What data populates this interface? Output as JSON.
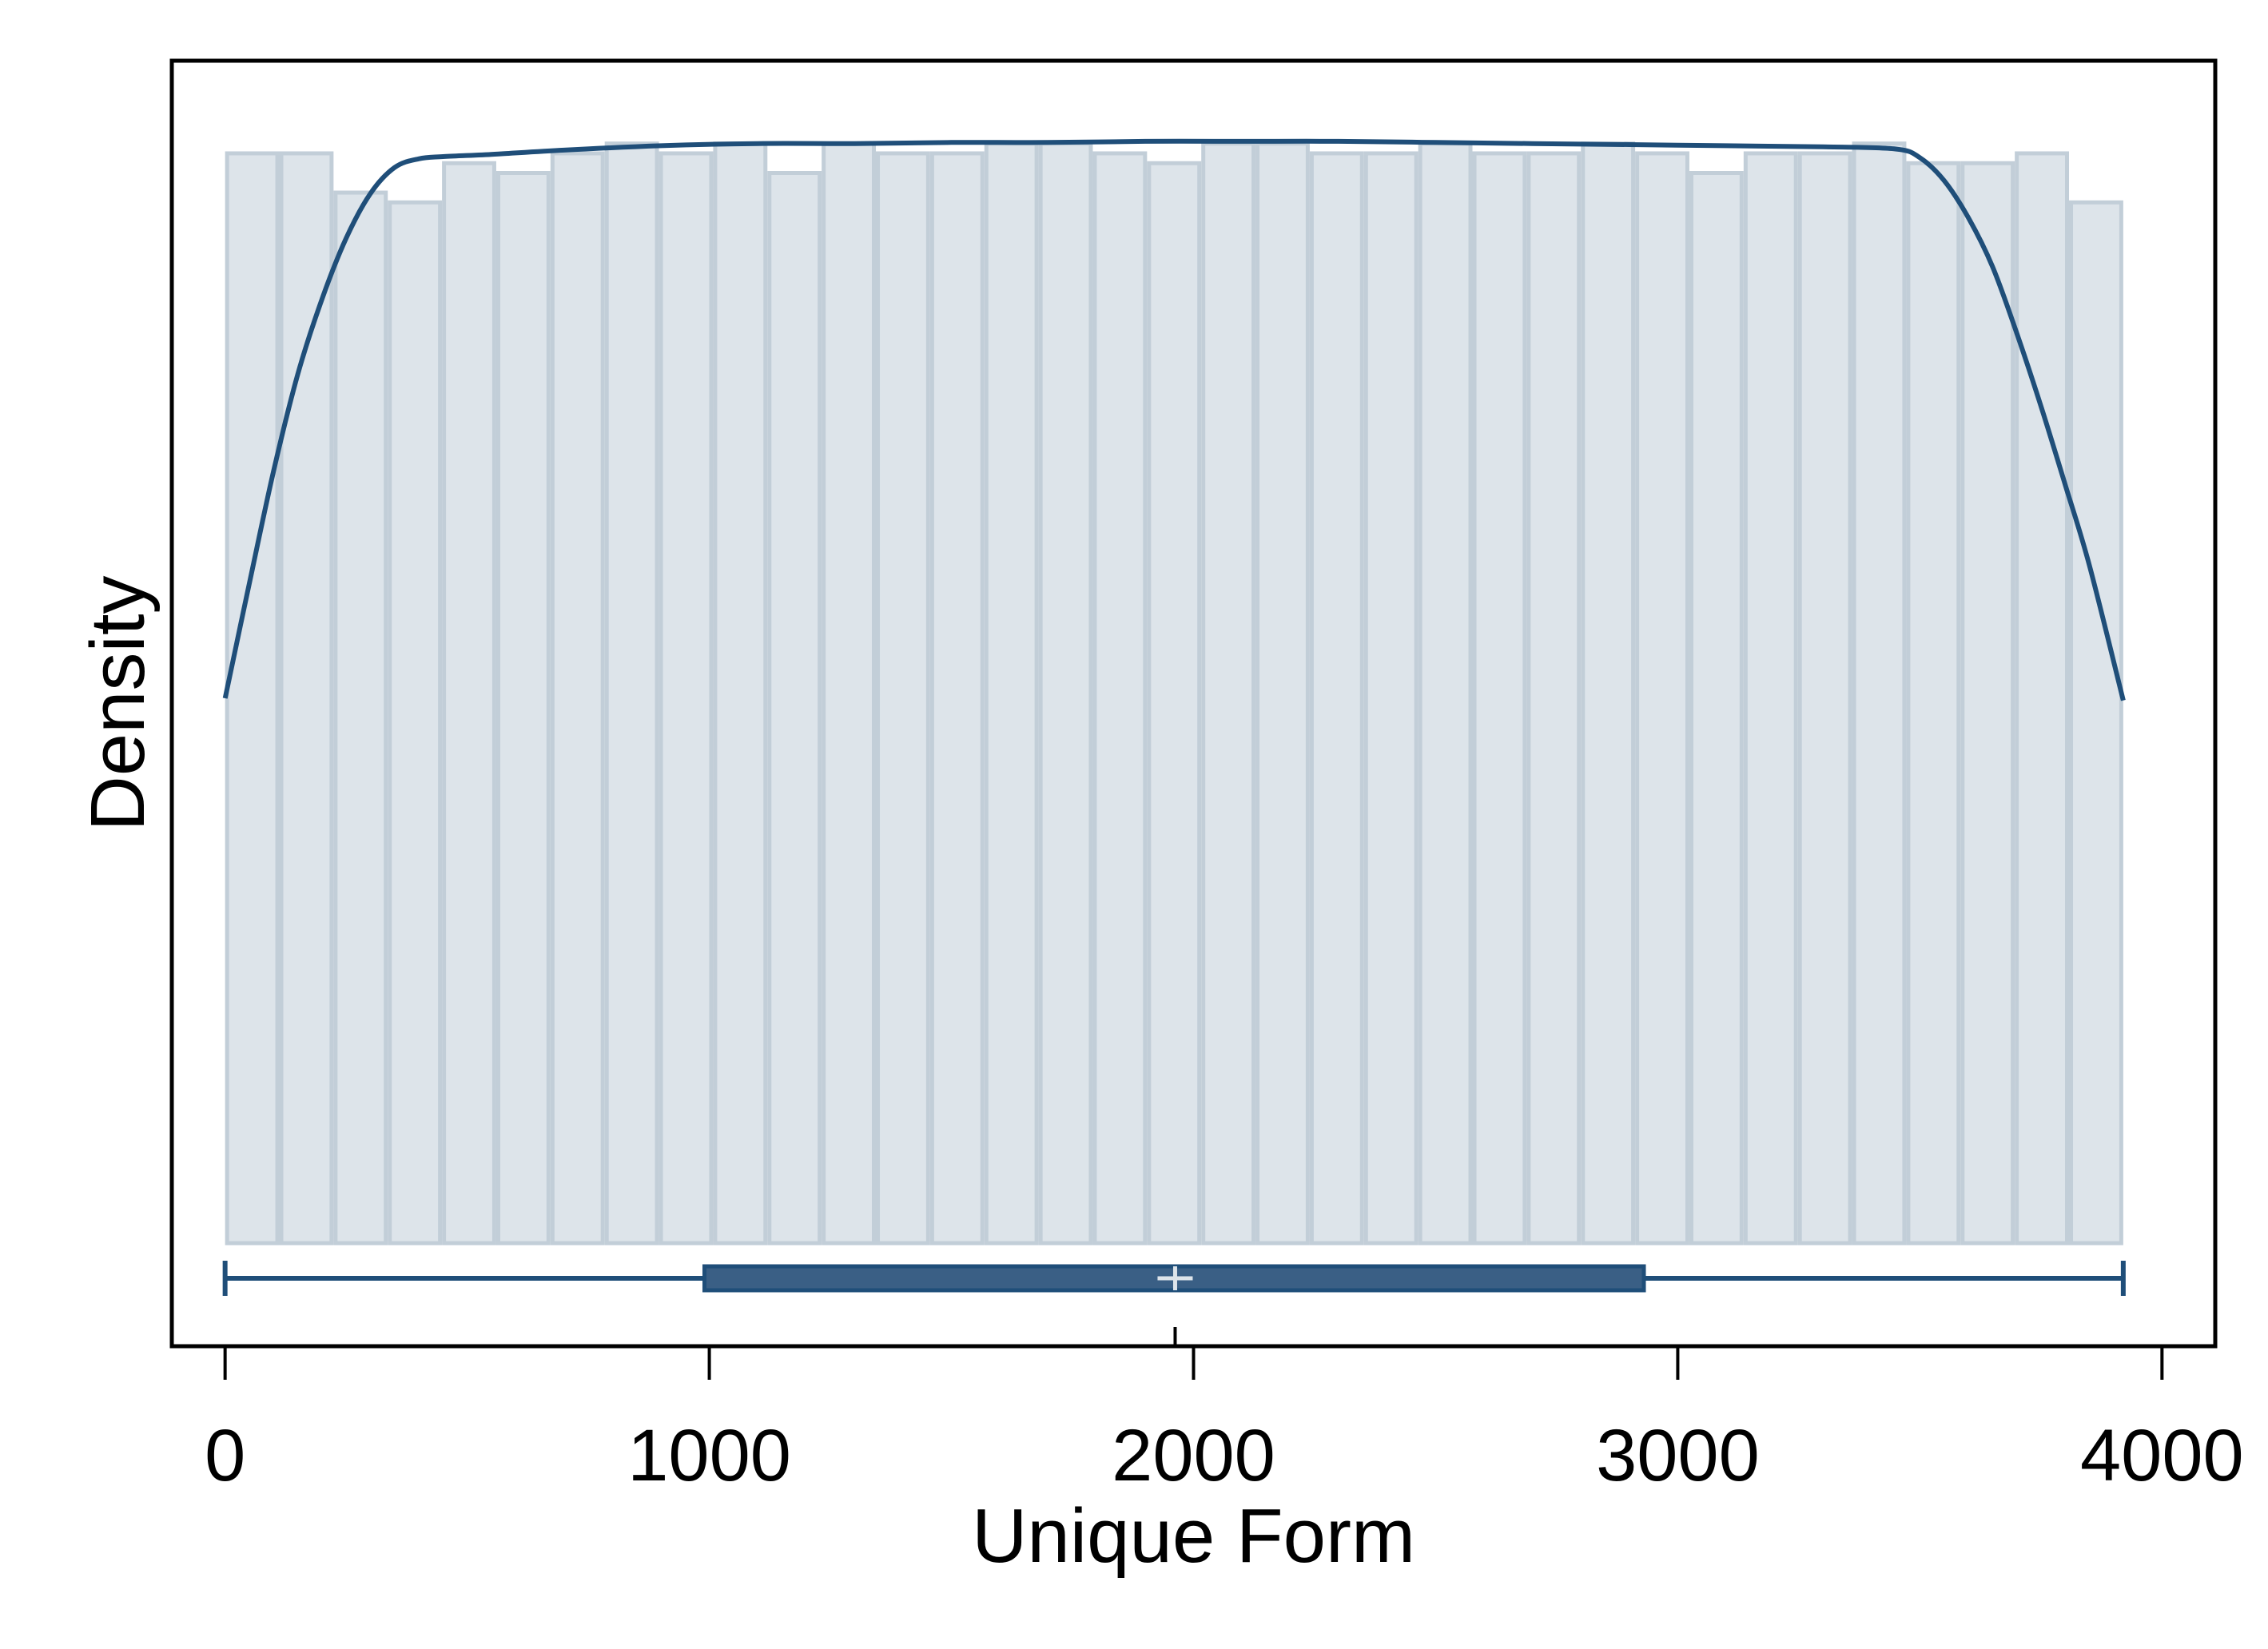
{
  "chart_data": {
    "type": "bar",
    "title": "",
    "xlabel": "Unique Form",
    "ylabel": "Density",
    "xlim": [
      -110,
      4110
    ],
    "ylim": [
      0,
      1.085
    ],
    "x_ticks": [
      0,
      1000,
      2000,
      3000,
      4000
    ],
    "x_tick_labels": [
      "0",
      "1000",
      "2000",
      "3000",
      "4000"
    ],
    "y_ticks_shown": false,
    "grid": false,
    "legend": "none",
    "histogram": {
      "bin_edges": [
        0,
        112,
        224,
        336,
        448,
        560,
        672,
        784,
        896,
        1008,
        1120,
        1232,
        1344,
        1456,
        1568,
        1680,
        1792,
        1904,
        2016,
        2128,
        2240,
        2352,
        2464,
        2576,
        2688,
        2800,
        2912,
        3024,
        3136,
        3248,
        3360,
        3472,
        3584,
        3696,
        3808,
        3920
      ],
      "values": [
        1.0,
        1.0,
        0.964,
        0.955,
        0.991,
        0.982,
        1.0,
        1.009,
        1.0,
        1.009,
        0.982,
        1.009,
        1.0,
        1.0,
        1.009,
        1.009,
        1.0,
        0.991,
        1.009,
        1.009,
        1.0,
        1.0,
        1.009,
        1.0,
        1.0,
        1.009,
        1.0,
        0.982,
        1.0,
        1.0,
        1.009,
        0.991,
        0.991,
        1.0,
        0.955
      ]
    },
    "kde": {
      "x": [
        0,
        50,
        100,
        150,
        200,
        250,
        300,
        350,
        400,
        450,
        550,
        700,
        900,
        1100,
        1300,
        1500,
        1700,
        1900,
        2100,
        2300,
        2500,
        2700,
        2900,
        3100,
        3300,
        3450,
        3500,
        3550,
        3600,
        3650,
        3700,
        3750,
        3800,
        3850,
        3920
      ],
      "y": [
        0.5,
        0.605,
        0.708,
        0.797,
        0.866,
        0.922,
        0.963,
        0.987,
        0.995,
        0.997,
        0.999,
        1.003,
        1.007,
        1.009,
        1.009,
        1.01,
        1.01,
        1.011,
        1.011,
        1.011,
        1.01,
        1.009,
        1.008,
        1.007,
        1.006,
        1.004,
        0.996,
        0.975,
        0.941,
        0.896,
        0.835,
        0.768,
        0.696,
        0.622,
        0.498
      ]
    },
    "boxplot": {
      "min": 0,
      "q1": 990,
      "median": 1962,
      "mean": 1962,
      "q3": 2930,
      "max": 3920
    },
    "colors": {
      "bar_fill": "#dde4ea",
      "bar_edge": "#c2ced8",
      "kde_line": "#1f4e79",
      "box_fill": "#3a5f85",
      "box_edge": "#1f4e79",
      "mean_marker": "#dde4ea",
      "axis": "#000000"
    }
  }
}
